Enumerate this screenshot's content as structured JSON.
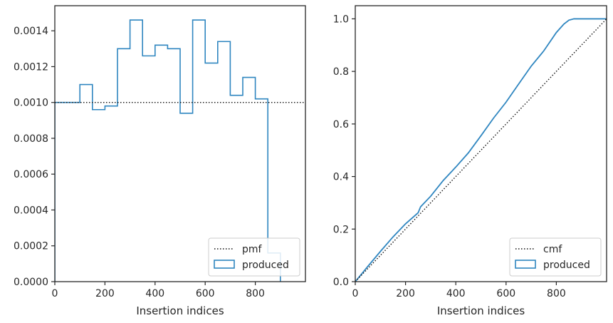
{
  "colors": {
    "produced": "#2f86c0",
    "reference": "#111111",
    "axes": "#262626",
    "legend_border": "#cccccc"
  },
  "chart_data": [
    {
      "type": "area",
      "style": "step-histogram",
      "xlabel": "Insertion indices",
      "ylabel": "",
      "xlim": [
        0,
        1000
      ],
      "ylim": [
        0,
        0.00154
      ],
      "xticks": [
        0,
        200,
        400,
        600,
        800
      ],
      "xtick_labels": [
        "0",
        "200",
        "400",
        "600",
        "800"
      ],
      "yticks": [
        0,
        0.0002,
        0.0004,
        0.0006,
        0.0008,
        0.001,
        0.0012,
        0.0014
      ],
      "ytick_labels": [
        "0.0000",
        "0.0002",
        "0.0004",
        "0.0006",
        "0.0008",
        "0.0010",
        "0.0012",
        "0.0014"
      ],
      "grid": false,
      "legend": {
        "location": "lower-right",
        "entries": [
          "pmf",
          "produced"
        ]
      },
      "series": [
        {
          "name": "produced",
          "kind": "step",
          "bin_edges": [
            0,
            50,
            100,
            150,
            200,
            250,
            300,
            350,
            400,
            450,
            500,
            550,
            600,
            650,
            700,
            750,
            800,
            850,
            900
          ],
          "values": [
            0.001,
            0.001,
            0.0011,
            0.00096,
            0.00098,
            0.0013,
            0.00146,
            0.00126,
            0.00132,
            0.0013,
            0.00094,
            0.00146,
            0.00122,
            0.00134,
            0.00104,
            0.00114,
            0.00102,
            0.00016
          ]
        },
        {
          "name": "pmf",
          "kind": "hline",
          "value": 0.001
        }
      ]
    },
    {
      "type": "line",
      "xlabel": "Insertion indices",
      "ylabel": "",
      "xlim": [
        0,
        1000
      ],
      "ylim": [
        0,
        1.05
      ],
      "xticks": [
        0,
        200,
        400,
        600,
        800
      ],
      "xtick_labels": [
        "0",
        "200",
        "400",
        "600",
        "800"
      ],
      "yticks": [
        0,
        0.2,
        0.4,
        0.6,
        0.8,
        1.0
      ],
      "ytick_labels": [
        "0.0",
        "0.2",
        "0.4",
        "0.6",
        "0.8",
        "1.0"
      ],
      "grid": false,
      "legend": {
        "location": "lower-right",
        "entries": [
          "cmf",
          "produced"
        ]
      },
      "series": [
        {
          "name": "produced",
          "x": [
            0,
            50,
            100,
            150,
            200,
            250,
            260,
            300,
            350,
            400,
            450,
            500,
            550,
            600,
            650,
            700,
            750,
            800,
            830,
            850,
            870,
            900,
            1000
          ],
          "y": [
            0,
            0.058,
            0.115,
            0.17,
            0.22,
            0.262,
            0.285,
            0.325,
            0.385,
            0.436,
            0.49,
            0.555,
            0.622,
            0.683,
            0.752,
            0.82,
            0.878,
            0.948,
            0.98,
            0.995,
            1.0,
            1.0,
            1.0
          ]
        },
        {
          "name": "cmf",
          "kind": "diagonal",
          "x": [
            0,
            1000
          ],
          "y": [
            0,
            1
          ]
        }
      ]
    }
  ]
}
